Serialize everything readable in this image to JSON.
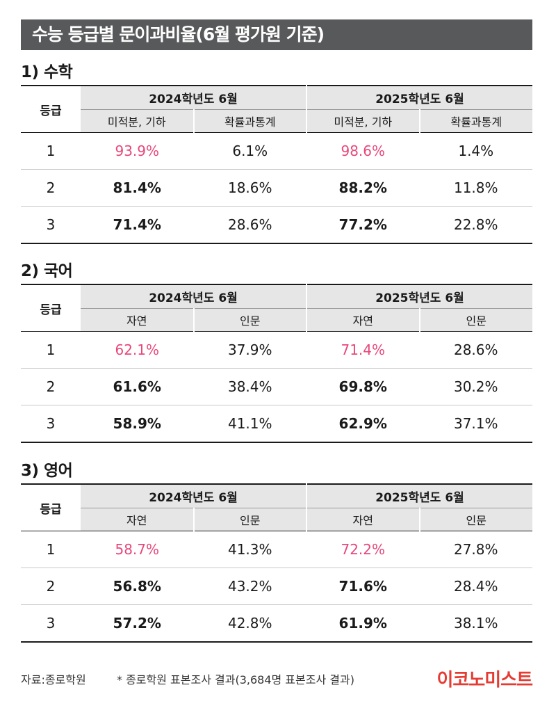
{
  "title": "수능 등급별 문이과비율(6월 평가원 기준)",
  "grade_header": "등급",
  "sections": [
    {
      "heading": "1) 수학",
      "years": [
        "2024학년도 6월",
        "2025학년도 6월"
      ],
      "subheaders": [
        "미적분, 기하",
        "확률과통계",
        "미적분, 기하",
        "확률과통계"
      ],
      "rows": [
        {
          "grade": "1",
          "values": [
            "93.9%",
            "6.1%",
            "98.6%",
            "1.4%"
          ]
        },
        {
          "grade": "2",
          "values": [
            "81.4%",
            "18.6%",
            "88.2%",
            "11.8%"
          ]
        },
        {
          "grade": "3",
          "values": [
            "71.4%",
            "28.6%",
            "77.2%",
            "22.8%"
          ]
        }
      ]
    },
    {
      "heading": "2) 국어",
      "years": [
        "2024학년도 6월",
        "2025학년도 6월"
      ],
      "subheaders": [
        "자연",
        "인문",
        "자연",
        "인문"
      ],
      "rows": [
        {
          "grade": "1",
          "values": [
            "62.1%",
            "37.9%",
            "71.4%",
            "28.6%"
          ]
        },
        {
          "grade": "2",
          "values": [
            "61.6%",
            "38.4%",
            "69.8%",
            "30.2%"
          ]
        },
        {
          "grade": "3",
          "values": [
            "58.9%",
            "41.1%",
            "62.9%",
            "37.1%"
          ]
        }
      ]
    },
    {
      "heading": "3) 영어",
      "years": [
        "2024학년도 6월",
        "2025학년도 6월"
      ],
      "subheaders": [
        "자연",
        "인문",
        "자연",
        "인문"
      ],
      "rows": [
        {
          "grade": "1",
          "values": [
            "58.7%",
            "41.3%",
            "72.2%",
            "27.8%"
          ]
        },
        {
          "grade": "2",
          "values": [
            "56.8%",
            "43.2%",
            "71.6%",
            "28.4%"
          ]
        },
        {
          "grade": "3",
          "values": [
            "57.2%",
            "42.8%",
            "61.9%",
            "38.1%"
          ]
        }
      ]
    }
  ],
  "footer": {
    "source": "자료:종로학원",
    "note": "* 종로학원 표본조사 결과(3,684명 표본조사 결과)",
    "logo": "이코노미스트"
  },
  "colors": {
    "title_bg": "#58595b",
    "header_bg": "#e6e6e6",
    "highlight": "#e8477a",
    "logo": "#e63b33"
  }
}
